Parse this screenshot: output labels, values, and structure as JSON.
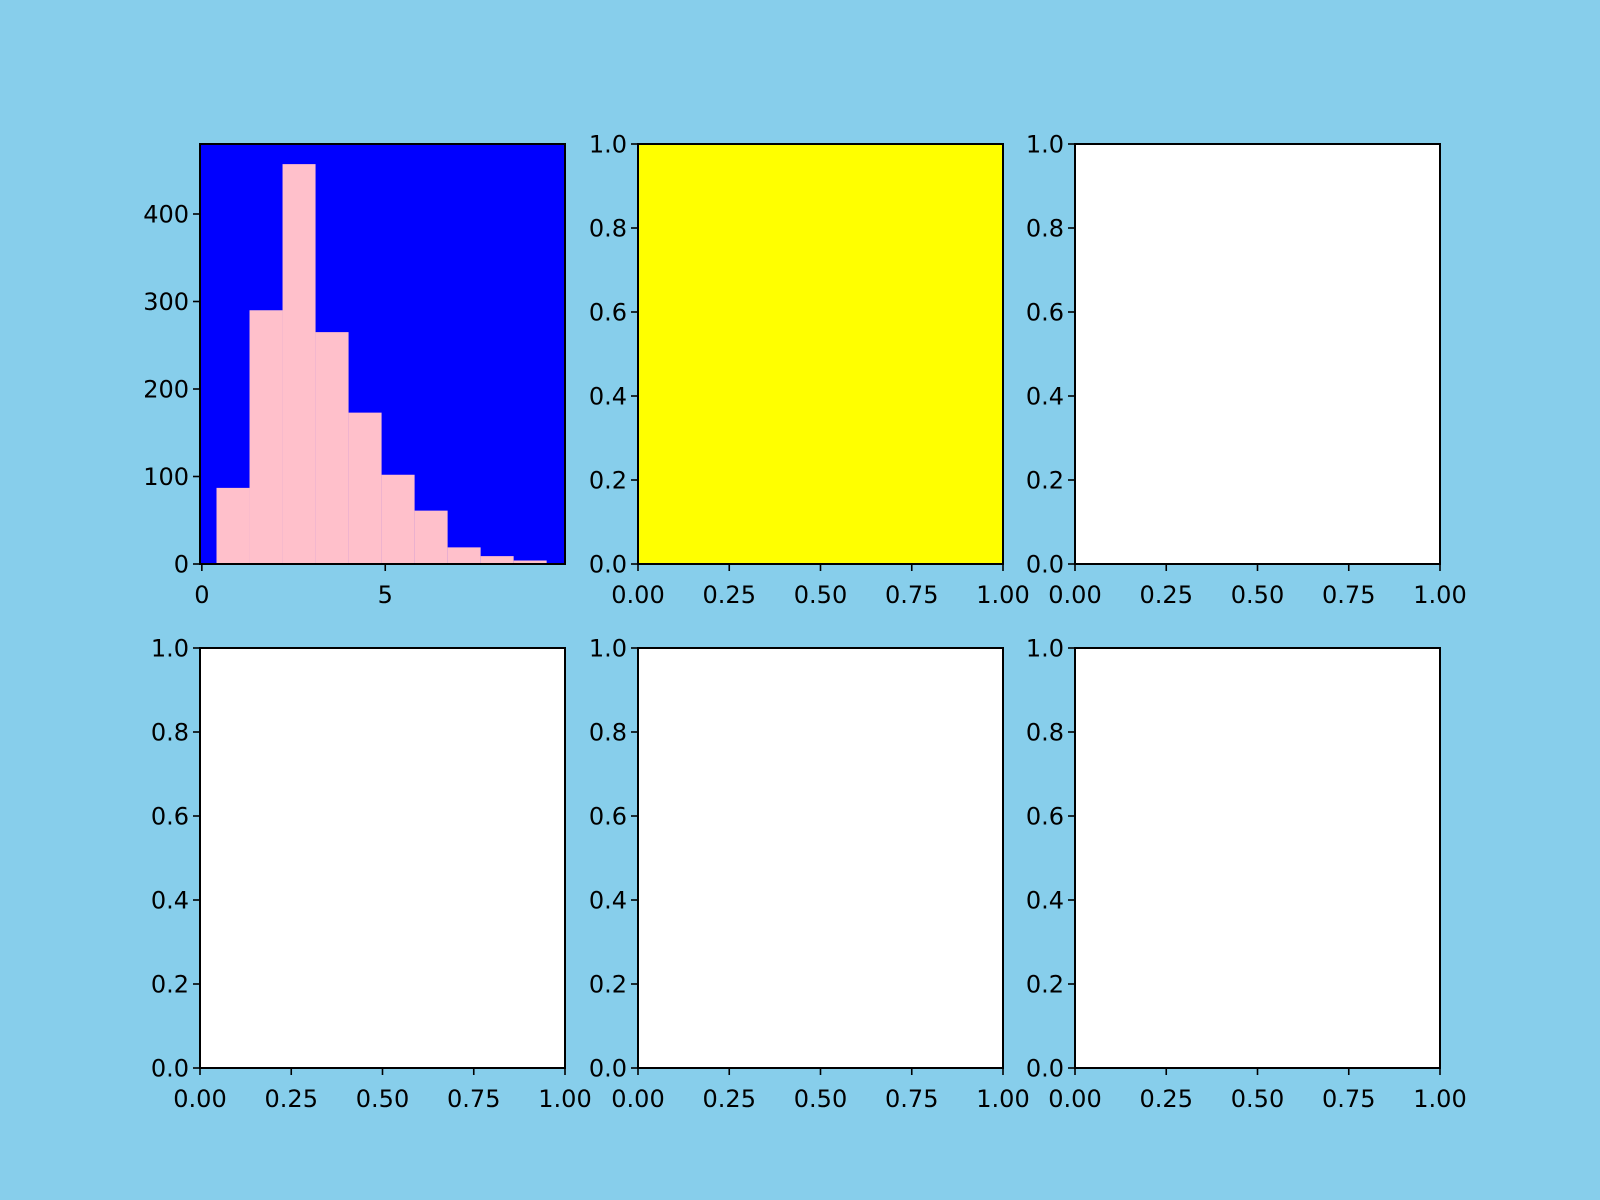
{
  "figure": {
    "background": "#87ceeb"
  },
  "chart_data": [
    {
      "type": "bar",
      "subtype": "histogram",
      "panel": "row-1-col-1",
      "background": "#0000ff",
      "bar_color": "#ffc0cb",
      "categories": [
        "0.4-1.3",
        "1.3-2.2",
        "2.2-3.1",
        "3.1-4.0",
        "4.0-4.9",
        "4.9-5.8",
        "5.8-6.7",
        "6.7-7.6",
        "7.6-8.5",
        "8.5-9.4"
      ],
      "bin_edges": [
        0.4,
        1.3,
        2.2,
        3.1,
        4.0,
        4.9,
        5.8,
        6.7,
        7.6,
        8.5,
        9.4
      ],
      "values": [
        87,
        290,
        457,
        265,
        173,
        102,
        61,
        19,
        9,
        4
      ],
      "xlim": [
        -0.05,
        9.9
      ],
      "ylim": [
        0,
        480
      ],
      "x_ticks": [
        0,
        5
      ],
      "x_tick_labels": [
        "0",
        "5"
      ],
      "y_ticks": [
        0,
        100,
        200,
        300,
        400
      ],
      "y_tick_labels": [
        "0",
        "100",
        "200",
        "300",
        "400"
      ],
      "title": "",
      "xlabel": "",
      "ylabel": "",
      "grid": false
    },
    {
      "type": "scatter",
      "panel": "row-1-col-2",
      "background": "#ffff00",
      "series": [],
      "xlim": [
        0,
        1
      ],
      "ylim": [
        0,
        1
      ],
      "x_ticks": [
        0,
        0.25,
        0.5,
        0.75,
        1
      ],
      "x_tick_labels": [
        "0.00",
        "0.25",
        "0.50",
        "0.75",
        "1.00"
      ],
      "y_ticks": [
        0,
        0.2,
        0.4,
        0.6,
        0.8,
        1
      ],
      "y_tick_labels": [
        "0.0",
        "0.2",
        "0.4",
        "0.6",
        "0.8",
        "1.0"
      ],
      "title": "",
      "xlabel": "",
      "ylabel": "",
      "grid": false
    },
    {
      "type": "scatter",
      "panel": "row-1-col-3",
      "background": "#ffffff",
      "series": [],
      "xlim": [
        0,
        1
      ],
      "ylim": [
        0,
        1
      ],
      "x_ticks": [
        0,
        0.25,
        0.5,
        0.75,
        1
      ],
      "x_tick_labels": [
        "0.00",
        "0.25",
        "0.50",
        "0.75",
        "1.00"
      ],
      "y_ticks": [
        0,
        0.2,
        0.4,
        0.6,
        0.8,
        1
      ],
      "y_tick_labels": [
        "0.0",
        "0.2",
        "0.4",
        "0.6",
        "0.8",
        "1.0"
      ],
      "title": "",
      "xlabel": "",
      "ylabel": "",
      "grid": false
    },
    {
      "type": "scatter",
      "panel": "row-2-col-1",
      "background": "#ffffff",
      "series": [],
      "xlim": [
        0,
        1
      ],
      "ylim": [
        0,
        1
      ],
      "x_ticks": [
        0,
        0.25,
        0.5,
        0.75,
        1
      ],
      "x_tick_labels": [
        "0.00",
        "0.25",
        "0.50",
        "0.75",
        "1.00"
      ],
      "y_ticks": [
        0,
        0.2,
        0.4,
        0.6,
        0.8,
        1
      ],
      "y_tick_labels": [
        "0.0",
        "0.2",
        "0.4",
        "0.6",
        "0.8",
        "1.0"
      ],
      "title": "",
      "xlabel": "",
      "ylabel": "",
      "grid": false
    },
    {
      "type": "scatter",
      "panel": "row-2-col-2",
      "background": "#ffffff",
      "series": [],
      "xlim": [
        0,
        1
      ],
      "ylim": [
        0,
        1
      ],
      "x_ticks": [
        0,
        0.25,
        0.5,
        0.75,
        1
      ],
      "x_tick_labels": [
        "0.00",
        "0.25",
        "0.50",
        "0.75",
        "1.00"
      ],
      "y_ticks": [
        0,
        0.2,
        0.4,
        0.6,
        0.8,
        1
      ],
      "y_tick_labels": [
        "0.0",
        "0.2",
        "0.4",
        "0.6",
        "0.8",
        "1.0"
      ],
      "title": "",
      "xlabel": "",
      "ylabel": "",
      "grid": false
    },
    {
      "type": "scatter",
      "panel": "row-2-col-3",
      "background": "#ffffff",
      "series": [],
      "xlim": [
        0,
        1
      ],
      "ylim": [
        0,
        1
      ],
      "x_ticks": [
        0,
        0.25,
        0.5,
        0.75,
        1
      ],
      "x_tick_labels": [
        "0.00",
        "0.25",
        "0.50",
        "0.75",
        "1.00"
      ],
      "y_ticks": [
        0,
        0.2,
        0.4,
        0.6,
        0.8,
        1
      ],
      "y_tick_labels": [
        "0.0",
        "0.2",
        "0.4",
        "0.6",
        "0.8",
        "1.0"
      ],
      "title": "",
      "xlabel": "",
      "ylabel": "",
      "grid": false
    }
  ]
}
